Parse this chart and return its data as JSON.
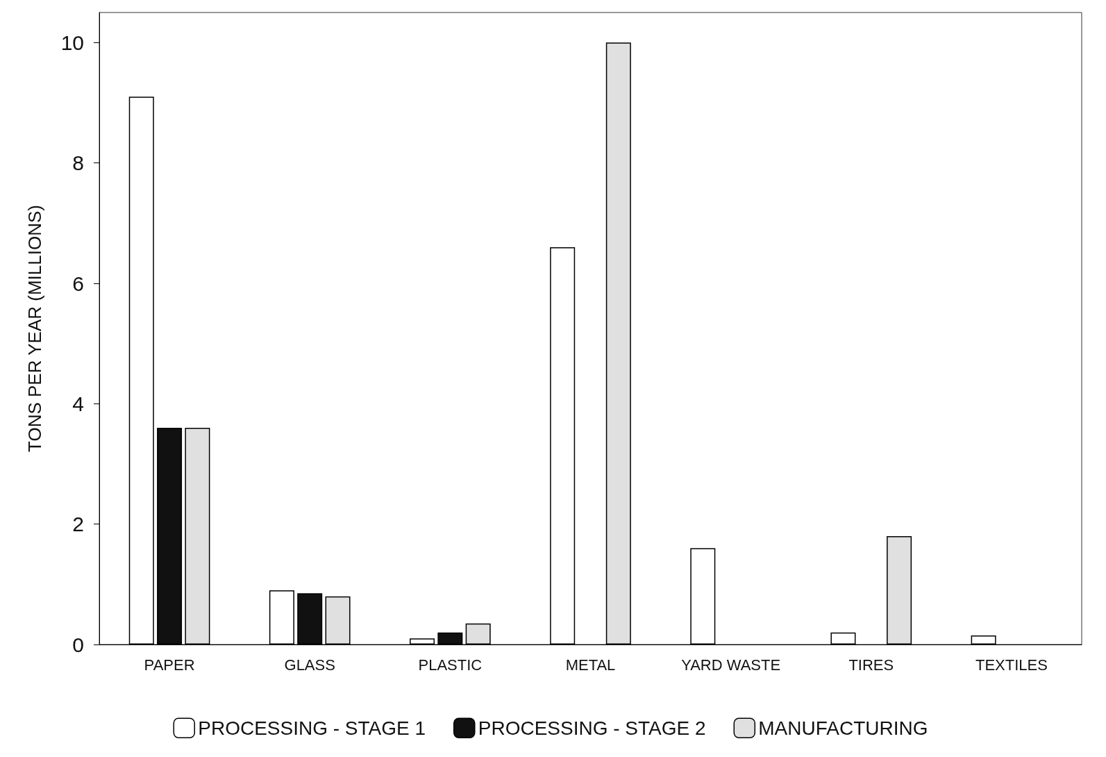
{
  "chart_data": {
    "type": "bar",
    "ylabel": "TONS PER YEAR (MILLIONS)",
    "categories": [
      "PAPER",
      "GLASS",
      "PLASTIC",
      "METAL",
      "YARD WASTE",
      "TIRES",
      "TEXTILES"
    ],
    "series": [
      {
        "name": "PROCESSING - STAGE 1",
        "color": "#ffffff",
        "values": [
          9.1,
          0.9,
          0.1,
          6.6,
          1.6,
          0.2,
          0.15
        ]
      },
      {
        "name": "PROCESSING - STAGE 2",
        "color": "#111111",
        "values": [
          3.6,
          0.85,
          0.2,
          null,
          null,
          null,
          null
        ]
      },
      {
        "name": "MANUFACTURING",
        "color": "#e0e0e0",
        "values": [
          3.6,
          0.8,
          0.35,
          10,
          null,
          1.8,
          null
        ]
      }
    ],
    "ylim": [
      0,
      10.5
    ],
    "yticks": [
      0,
      2,
      4,
      6,
      8,
      10
    ],
    "grid": false,
    "legend": "bottom"
  }
}
